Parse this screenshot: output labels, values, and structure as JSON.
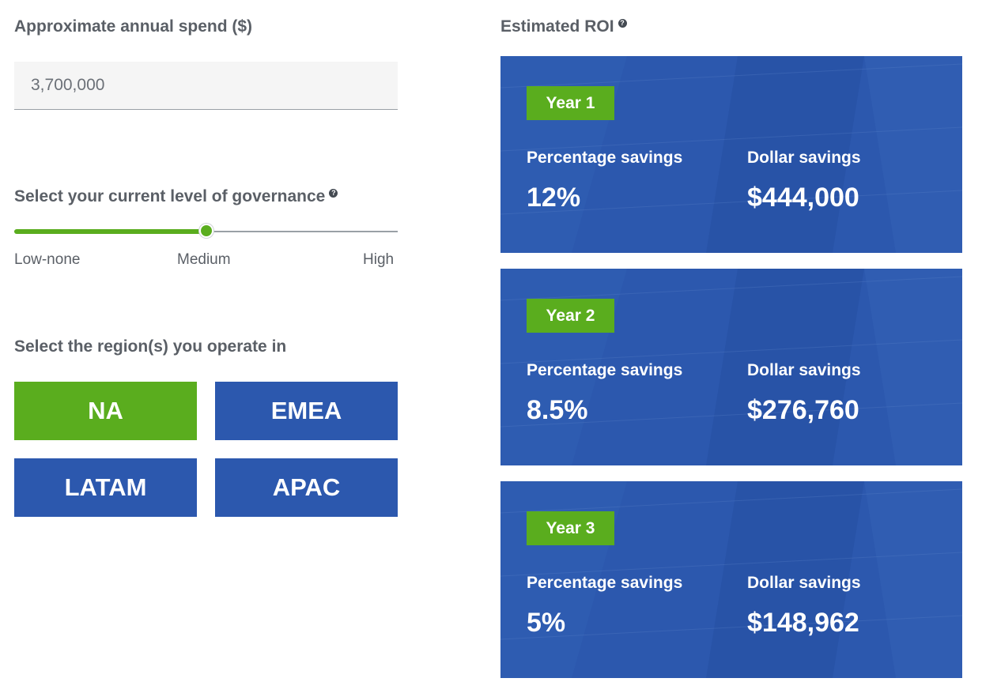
{
  "spend": {
    "label": "Approximate annual spend ($)",
    "value": "3,700,000"
  },
  "governance": {
    "label": "Select your current level of governance",
    "help_icon": "question-circle-icon",
    "ticks": [
      "Low-none",
      "Medium",
      "High"
    ],
    "selected": "Medium",
    "level": 0.5
  },
  "regions": {
    "label": "Select the region(s) you operate in",
    "items": [
      {
        "label": "NA",
        "selected": true
      },
      {
        "label": "EMEA",
        "selected": false
      },
      {
        "label": "LATAM",
        "selected": false
      },
      {
        "label": "APAC",
        "selected": false
      }
    ]
  },
  "roi": {
    "label": "Estimated ROI",
    "help_icon": "question-circle-icon",
    "years": [
      {
        "year": "Year 1",
        "pct_label": "Percentage savings",
        "pct": "12%",
        "dollar_label": "Dollar savings",
        "dollar": "$444,000"
      },
      {
        "year": "Year 2",
        "pct_label": "Percentage savings",
        "pct": "8.5%",
        "dollar_label": "Dollar savings",
        "dollar": "$276,760"
      },
      {
        "year": "Year 3",
        "pct_label": "Percentage savings",
        "pct": "5%",
        "dollar_label": "Dollar savings",
        "dollar": "$148,962"
      }
    ]
  },
  "colors": {
    "accent_green": "#5aad1e",
    "brand_blue": "#2c58ae",
    "label_gray": "#5a5f66"
  }
}
